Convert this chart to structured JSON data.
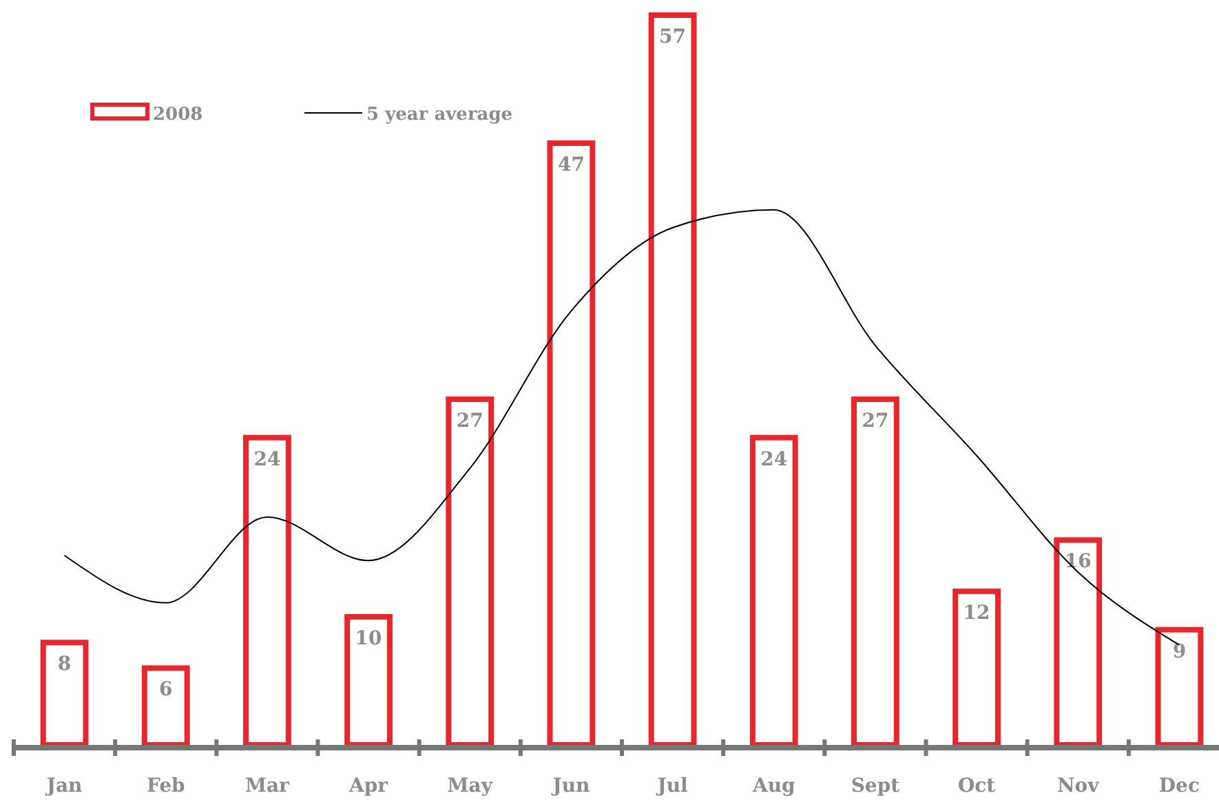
{
  "chart_data": {
    "type": "bar",
    "categories": [
      "Jan",
      "Feb",
      "Mar",
      "Apr",
      "May",
      "Jun",
      "Jul",
      "Aug",
      "Sept",
      "Oct",
      "Nov",
      "Dec"
    ],
    "series": [
      {
        "name": "2008",
        "color": "#e8262b",
        "values": [
          8,
          6,
          24,
          10,
          27,
          47,
          57,
          24,
          27,
          12,
          16,
          9
        ],
        "value_labels": [
          "8",
          "6",
          "24",
          "10",
          "27",
          "47",
          "57",
          "24",
          "27",
          "12",
          "16",
          "9"
        ]
      },
      {
        "name": "5 year average",
        "type": "line",
        "color": "#000000",
        "values": [
          14.8,
          11.1,
          17.8,
          14.4,
          21.6,
          33.9,
          40.4,
          41.8,
          31.2,
          22.6,
          13.5,
          7.8
        ]
      }
    ],
    "ylim": [
      0,
      57
    ],
    "legend": "top left",
    "grid": false,
    "marker": "none",
    "line_style": "solid",
    "tick_labels": "x"
  }
}
